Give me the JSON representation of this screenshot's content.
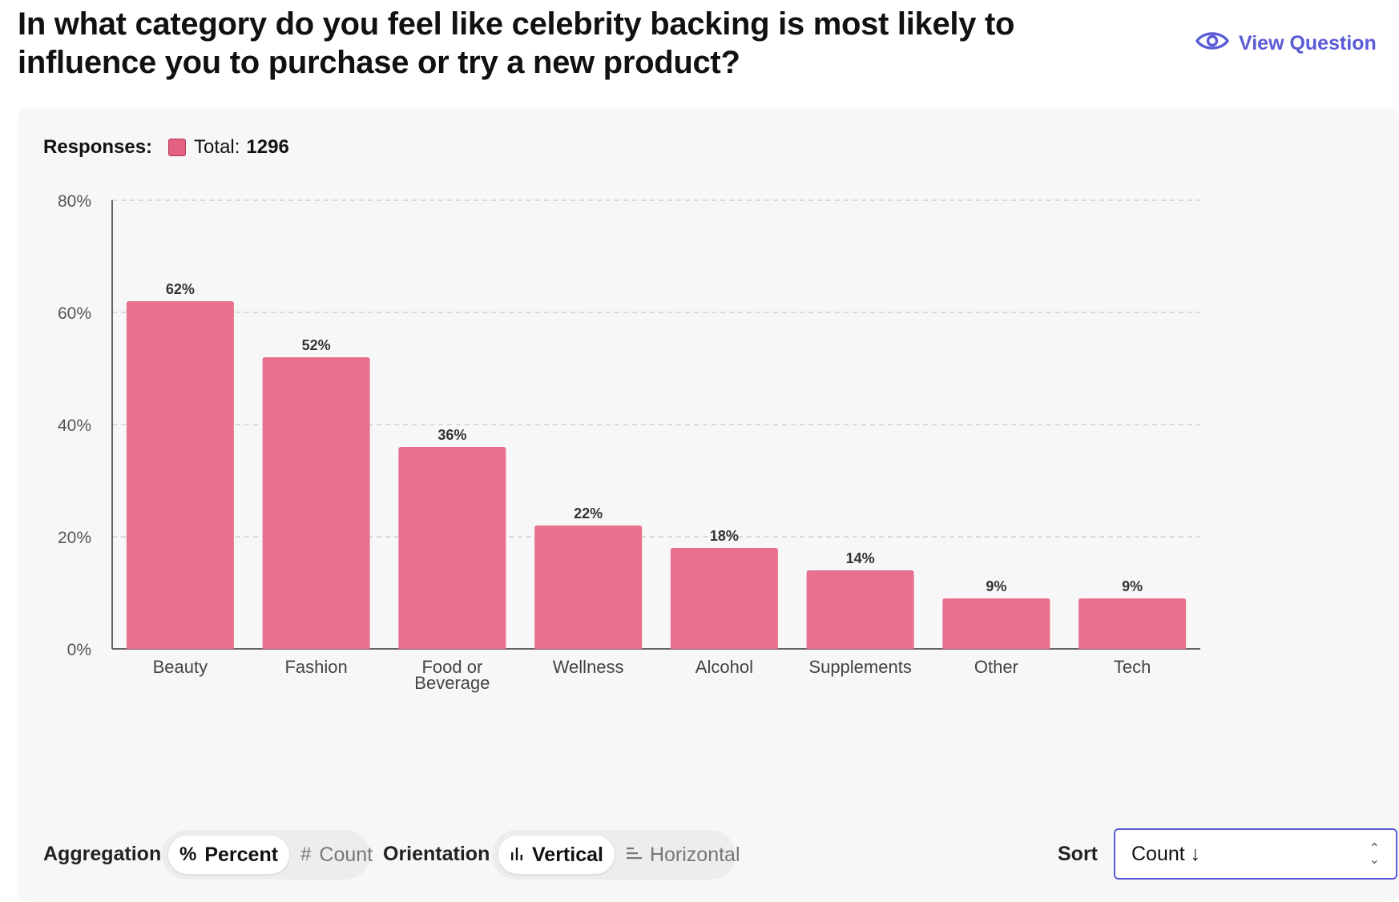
{
  "header": {
    "title": "In what category do you feel like celebrity backing is most likely to influence you to purchase or try a new product?",
    "view_question": "View Question",
    "view_icon": "eye-icon"
  },
  "legend": {
    "label": "Responses:",
    "total_label": "Total:",
    "total_value": "1296"
  },
  "chart_data": {
    "type": "bar",
    "categories": [
      "Beauty",
      "Fashion",
      "Food or Beverage",
      "Wellness",
      "Alcohol",
      "Supplements",
      "Other",
      "Tech"
    ],
    "category_lines": [
      [
        "Beauty"
      ],
      [
        "Fashion"
      ],
      [
        "Food or",
        "Beverage"
      ],
      [
        "Wellness"
      ],
      [
        "Alcohol"
      ],
      [
        "Supplements"
      ],
      [
        "Other"
      ],
      [
        "Tech"
      ]
    ],
    "values": [
      62,
      52,
      36,
      22,
      18,
      14,
      9,
      9
    ],
    "value_labels": [
      "62%",
      "52%",
      "36%",
      "22%",
      "18%",
      "14%",
      "9%",
      "9%"
    ],
    "series": [
      {
        "name": "Total",
        "values": [
          62,
          52,
          36,
          22,
          18,
          14,
          9,
          9
        ]
      }
    ],
    "yticks": [
      0,
      20,
      40,
      60,
      80
    ],
    "ytick_labels": [
      "0%",
      "20%",
      "40%",
      "60%",
      "80%"
    ],
    "ylim": [
      0,
      80
    ],
    "grid": true,
    "legend_position": "top-left",
    "bar_color": "#e8708e"
  },
  "controls": {
    "aggregation_label": "Aggregation",
    "aggregation_options": [
      {
        "icon": "percent-icon",
        "glyph": "%",
        "label": "Percent",
        "active": true
      },
      {
        "icon": "hash-icon",
        "glyph": "#",
        "label": "Count",
        "active": false
      }
    ],
    "orientation_label": "Orientation",
    "orientation_options": [
      {
        "icon": "bar-chart-icon",
        "label": "Vertical",
        "active": true
      },
      {
        "icon": "horizontal-bars-icon",
        "label": "Horizontal",
        "active": false
      }
    ],
    "sort_label": "Sort",
    "sort_value": "Count ↓"
  },
  "colors": {
    "accent": "#5b5bd6",
    "bar": "#e8708e",
    "legend_swatch": "#e36080"
  }
}
